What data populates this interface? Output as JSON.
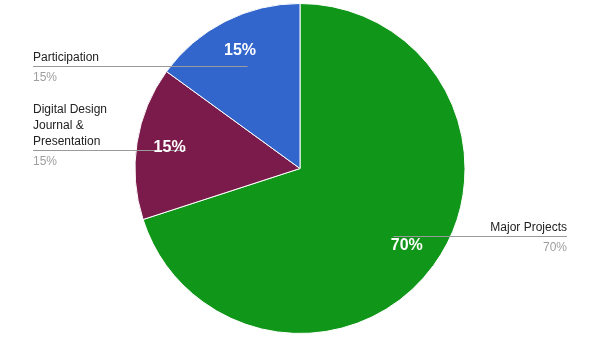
{
  "chart_data": {
    "type": "pie",
    "categories": [
      "Major Projects",
      "Digital Design Journal & Presentation",
      "Participation"
    ],
    "values": [
      70,
      15,
      15
    ],
    "value_labels": [
      "70%",
      "15%",
      "15%"
    ],
    "colors": [
      "#109618",
      "#7b1b4b",
      "#3366cc"
    ],
    "data_labels": true
  }
}
